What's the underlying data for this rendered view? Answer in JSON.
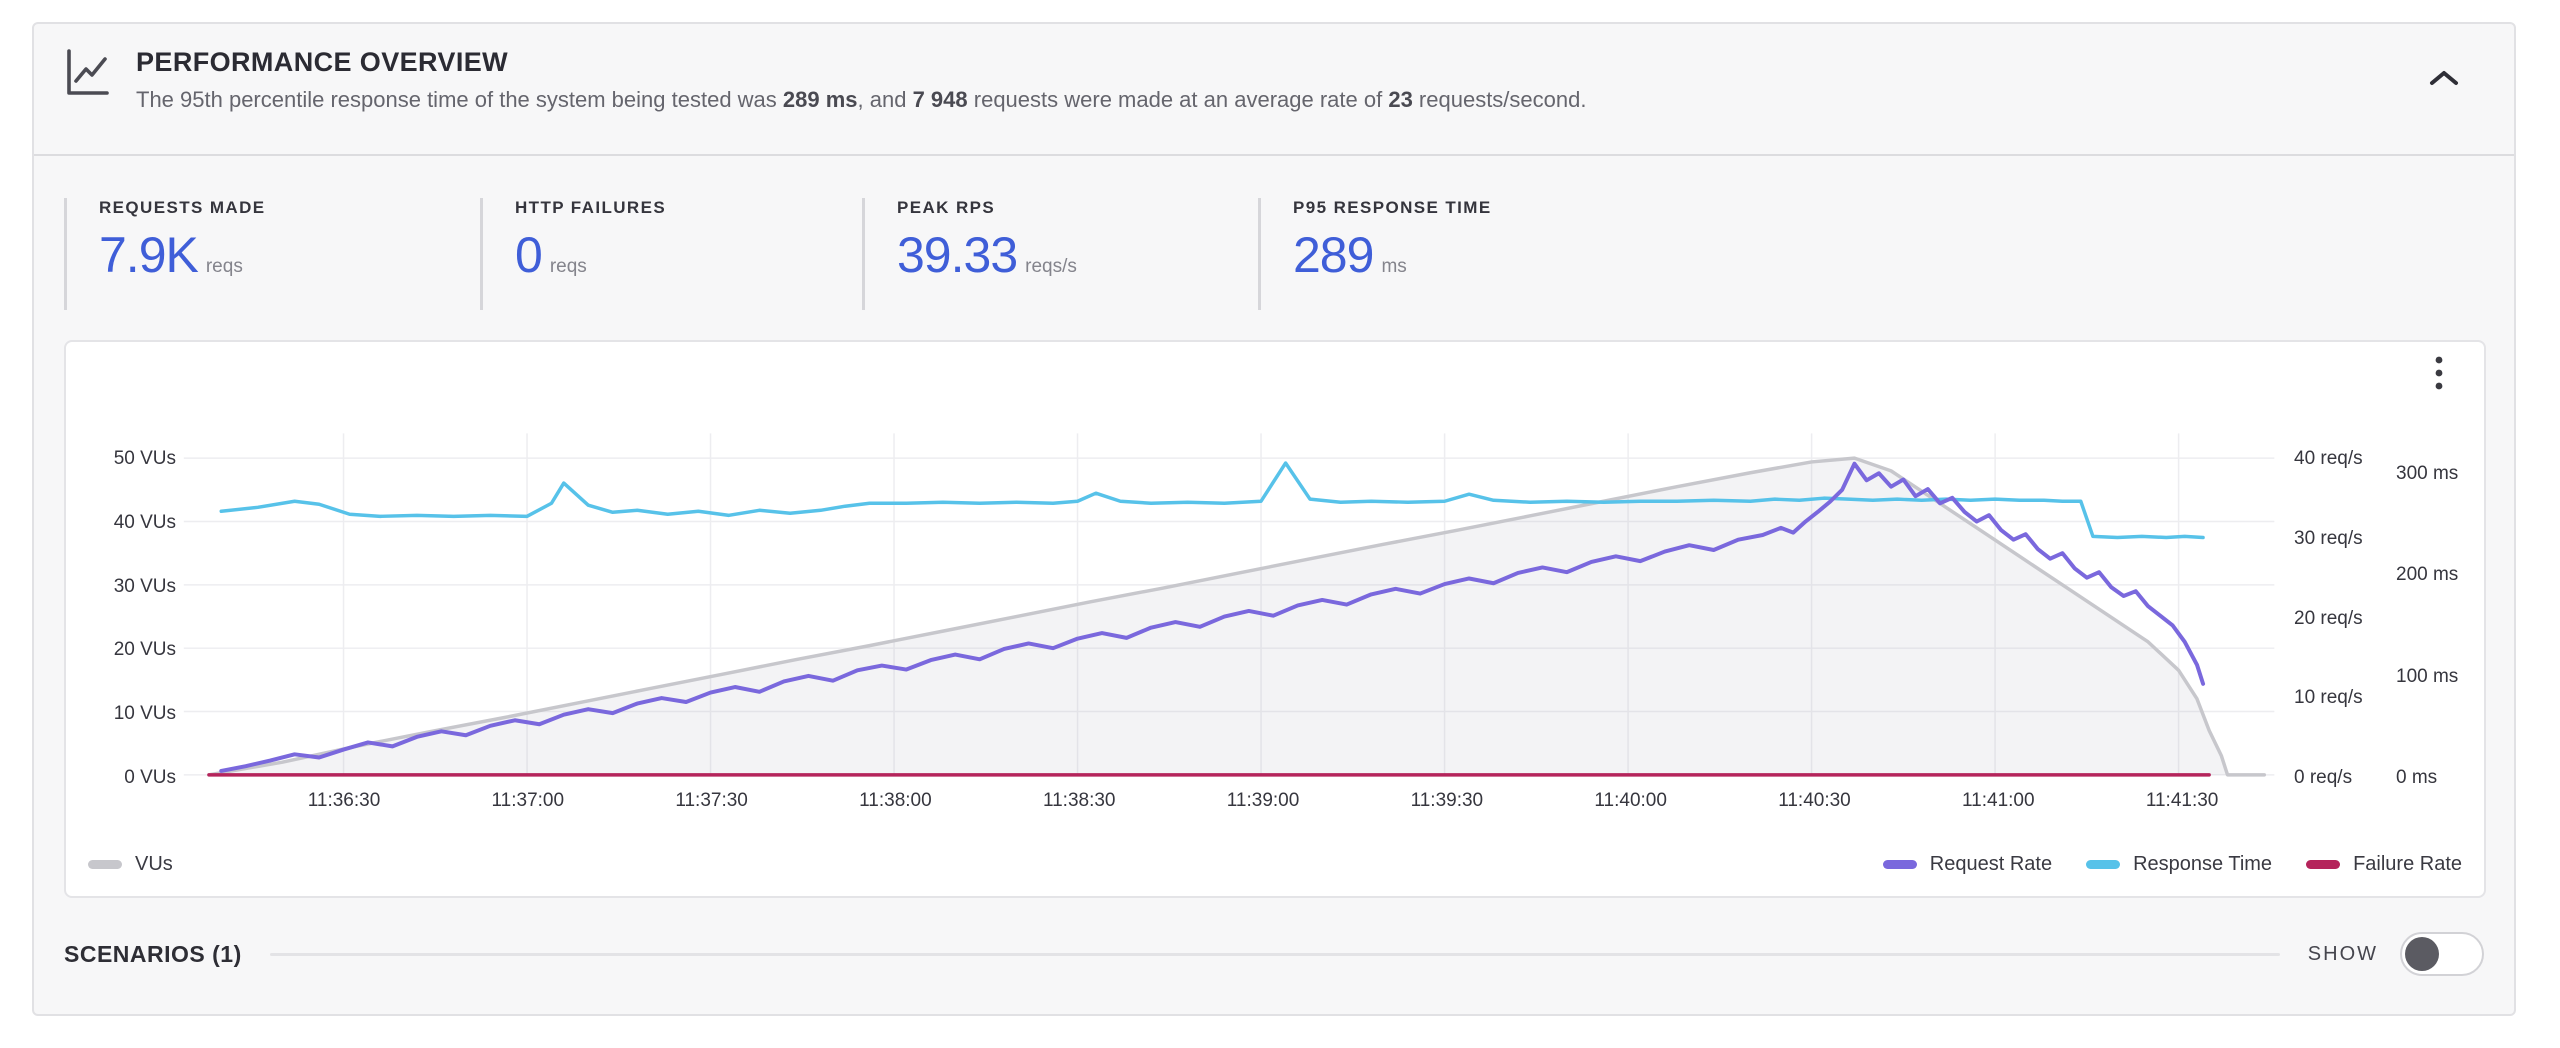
{
  "panel": {
    "title": "PERFORMANCE OVERVIEW",
    "description_parts": [
      {
        "text": "The 95th percentile response time of the system being tested was ",
        "bold": false
      },
      {
        "text": "289 ms",
        "bold": true
      },
      {
        "text": ", and ",
        "bold": false
      },
      {
        "text": "7 948",
        "bold": true
      },
      {
        "text": " requests were made at an average rate of ",
        "bold": false
      },
      {
        "text": "23",
        "bold": true
      },
      {
        "text": " requests/second.",
        "bold": false
      }
    ],
    "icons": {
      "header": "chart-line",
      "collapse": "chevron-up",
      "chart_menu": "kebab-vertical"
    },
    "accent_color": "#3f5ed8"
  },
  "stats": [
    {
      "label": "REQUESTS MADE",
      "value": "7.9K",
      "unit": "reqs"
    },
    {
      "label": "HTTP FAILURES",
      "value": "0",
      "unit": "reqs"
    },
    {
      "label": "PEAK RPS",
      "value": "39.33",
      "unit": "reqs/s"
    },
    {
      "label": "P95 RESPONSE TIME",
      "value": "289",
      "unit": "ms"
    }
  ],
  "legend_left": [
    {
      "label": "VUs",
      "color": "#c7c7cc"
    }
  ],
  "legend_right": [
    {
      "label": "Request Rate",
      "color": "#7a68dd"
    },
    {
      "label": "Response Time",
      "color": "#57c2e9"
    },
    {
      "label": "Failure Rate",
      "color": "#b5245b"
    }
  ],
  "scenarios": {
    "label": "SCENARIOS (1)",
    "show_label": "SHOW",
    "toggle_state": "off"
  },
  "chart_data": {
    "type": "line",
    "grid": true,
    "x_axis": {
      "unit": "time-of-day",
      "ticks": [
        {
          "t": 30,
          "label": "11:36:30"
        },
        {
          "t": 60,
          "label": "11:37:00"
        },
        {
          "t": 90,
          "label": "11:37:30"
        },
        {
          "t": 120,
          "label": "11:38:00"
        },
        {
          "t": 150,
          "label": "11:38:30"
        },
        {
          "t": 180,
          "label": "11:39:00"
        },
        {
          "t": 210,
          "label": "11:39:30"
        },
        {
          "t": 240,
          "label": "11:40:00"
        },
        {
          "t": 270,
          "label": "11:40:30"
        },
        {
          "t": 300,
          "label": "11:41:00"
        },
        {
          "t": 330,
          "label": "11:41:30"
        }
      ]
    },
    "y_axes": {
      "vus": {
        "range": [
          0,
          50
        ],
        "ticks": [
          {
            "v": 0,
            "label": "0 VUs"
          },
          {
            "v": 10,
            "label": "10 VUs"
          },
          {
            "v": 20,
            "label": "20 VUs"
          },
          {
            "v": 30,
            "label": "30 VUs"
          },
          {
            "v": 40,
            "label": "40 VUs"
          },
          {
            "v": 50,
            "label": "50 VUs"
          }
        ]
      },
      "rps": {
        "range": [
          0,
          40
        ],
        "ticks": [
          {
            "v": 0,
            "label": "0 req/s"
          },
          {
            "v": 10,
            "label": "10 req/s"
          },
          {
            "v": 20,
            "label": "20 req/s"
          },
          {
            "v": 30,
            "label": "30 req/s"
          },
          {
            "v": 40,
            "label": "40 req/s"
          }
        ]
      },
      "ms": {
        "range": [
          0,
          300
        ],
        "ticks": [
          {
            "v": 0,
            "label": "0 ms"
          },
          {
            "v": 100,
            "label": "100 ms"
          },
          {
            "v": 200,
            "label": "200 ms"
          },
          {
            "v": 300,
            "label": "300 ms"
          }
        ]
      }
    },
    "series": [
      {
        "name": "VUs",
        "axis": "vus",
        "color": "#c7c7cc",
        "fill": "rgba(176,176,186,0.15)",
        "width": 3.5,
        "points": [
          [
            8,
            0
          ],
          [
            20,
            2
          ],
          [
            32,
            4.5
          ],
          [
            44,
            6.8
          ],
          [
            56,
            9
          ],
          [
            68,
            11.3
          ],
          [
            80,
            13.6
          ],
          [
            92,
            15.9
          ],
          [
            104,
            18.2
          ],
          [
            116,
            20.4
          ],
          [
            128,
            22.7
          ],
          [
            140,
            25
          ],
          [
            152,
            27.3
          ],
          [
            164,
            29.5
          ],
          [
            176,
            31.8
          ],
          [
            188,
            34.1
          ],
          [
            200,
            36.4
          ],
          [
            212,
            38.6
          ],
          [
            224,
            40.9
          ],
          [
            236,
            43.2
          ],
          [
            248,
            45.5
          ],
          [
            260,
            47.7
          ],
          [
            270,
            49.4
          ],
          [
            277,
            50
          ],
          [
            283,
            48
          ],
          [
            290,
            43.5
          ],
          [
            297,
            39
          ],
          [
            304,
            34.5
          ],
          [
            311,
            30
          ],
          [
            318,
            25.5
          ],
          [
            325,
            21
          ],
          [
            330,
            16.5
          ],
          [
            333,
            12
          ],
          [
            335,
            7
          ],
          [
            337,
            3
          ],
          [
            338,
            0
          ],
          [
            344,
            0
          ]
        ]
      },
      {
        "name": "Failure Rate",
        "axis": "rps",
        "color": "#b5245b",
        "width": 3.5,
        "points": [
          [
            8,
            0
          ],
          [
            335,
            0
          ]
        ]
      },
      {
        "name": "Response Time",
        "axis": "ms",
        "color": "#57c2e9",
        "width": 3.5,
        "points": [
          [
            10,
            262
          ],
          [
            16,
            266
          ],
          [
            22,
            272
          ],
          [
            26,
            269
          ],
          [
            31,
            259
          ],
          [
            36,
            257
          ],
          [
            42,
            258
          ],
          [
            48,
            257
          ],
          [
            54,
            258
          ],
          [
            60,
            257
          ],
          [
            64,
            270
          ],
          [
            66,
            290
          ],
          [
            70,
            268
          ],
          [
            74,
            261
          ],
          [
            78,
            263
          ],
          [
            83,
            259
          ],
          [
            88,
            262
          ],
          [
            93,
            258
          ],
          [
            98,
            263
          ],
          [
            103,
            260
          ],
          [
            108,
            263
          ],
          [
            112,
            267
          ],
          [
            116,
            270
          ],
          [
            122,
            270
          ],
          [
            128,
            271
          ],
          [
            134,
            270
          ],
          [
            140,
            271
          ],
          [
            146,
            270
          ],
          [
            150,
            272
          ],
          [
            153,
            280
          ],
          [
            157,
            272
          ],
          [
            162,
            270
          ],
          [
            168,
            271
          ],
          [
            174,
            270
          ],
          [
            180,
            272
          ],
          [
            184,
            310
          ],
          [
            188,
            274
          ],
          [
            193,
            271
          ],
          [
            198,
            272
          ],
          [
            204,
            271
          ],
          [
            210,
            272
          ],
          [
            214,
            279
          ],
          [
            218,
            273
          ],
          [
            224,
            271
          ],
          [
            230,
            272
          ],
          [
            236,
            271
          ],
          [
            242,
            272
          ],
          [
            248,
            272
          ],
          [
            254,
            273
          ],
          [
            260,
            272
          ],
          [
            264,
            274
          ],
          [
            268,
            273
          ],
          [
            272,
            275
          ],
          [
            276,
            274
          ],
          [
            280,
            273
          ],
          [
            284,
            274
          ],
          [
            288,
            273
          ],
          [
            292,
            274
          ],
          [
            296,
            273
          ],
          [
            300,
            274
          ],
          [
            304,
            273
          ],
          [
            308,
            273
          ],
          [
            311,
            272
          ],
          [
            314,
            272
          ],
          [
            316,
            237
          ],
          [
            320,
            236
          ],
          [
            324,
            237
          ],
          [
            328,
            236
          ],
          [
            331,
            237
          ],
          [
            334,
            236
          ]
        ]
      },
      {
        "name": "Request Rate",
        "axis": "rps",
        "color": "#7a68dd",
        "width": 4,
        "points": [
          [
            10,
            0.5
          ],
          [
            14,
            1.1
          ],
          [
            18,
            1.8
          ],
          [
            22,
            2.6
          ],
          [
            26,
            2.2
          ],
          [
            30,
            3.2
          ],
          [
            34,
            4.1
          ],
          [
            38,
            3.6
          ],
          [
            42,
            4.8
          ],
          [
            46,
            5.5
          ],
          [
            50,
            5
          ],
          [
            54,
            6.2
          ],
          [
            58,
            6.9
          ],
          [
            62,
            6.4
          ],
          [
            66,
            7.6
          ],
          [
            70,
            8.3
          ],
          [
            74,
            7.8
          ],
          [
            78,
            9
          ],
          [
            82,
            9.7
          ],
          [
            86,
            9.2
          ],
          [
            90,
            10.4
          ],
          [
            94,
            11.1
          ],
          [
            98,
            10.5
          ],
          [
            102,
            11.8
          ],
          [
            106,
            12.5
          ],
          [
            110,
            11.9
          ],
          [
            114,
            13.2
          ],
          [
            118,
            13.8
          ],
          [
            122,
            13.3
          ],
          [
            126,
            14.5
          ],
          [
            130,
            15.2
          ],
          [
            134,
            14.6
          ],
          [
            138,
            15.9
          ],
          [
            142,
            16.6
          ],
          [
            146,
            16
          ],
          [
            150,
            17.2
          ],
          [
            154,
            17.9
          ],
          [
            158,
            17.3
          ],
          [
            162,
            18.6
          ],
          [
            166,
            19.3
          ],
          [
            170,
            18.7
          ],
          [
            174,
            20
          ],
          [
            178,
            20.7
          ],
          [
            182,
            20.1
          ],
          [
            186,
            21.4
          ],
          [
            190,
            22.1
          ],
          [
            194,
            21.5
          ],
          [
            198,
            22.8
          ],
          [
            202,
            23.5
          ],
          [
            206,
            22.9
          ],
          [
            210,
            24.1
          ],
          [
            214,
            24.8
          ],
          [
            218,
            24.2
          ],
          [
            222,
            25.5
          ],
          [
            226,
            26.2
          ],
          [
            230,
            25.6
          ],
          [
            234,
            26.9
          ],
          [
            238,
            27.6
          ],
          [
            242,
            27
          ],
          [
            246,
            28.2
          ],
          [
            250,
            29
          ],
          [
            254,
            28.4
          ],
          [
            258,
            29.7
          ],
          [
            262,
            30.3
          ],
          [
            265,
            31.2
          ],
          [
            267,
            30.6
          ],
          [
            269,
            32
          ],
          [
            271,
            33.2
          ],
          [
            273,
            34.5
          ],
          [
            275,
            36
          ],
          [
            277,
            39.3
          ],
          [
            279,
            37.2
          ],
          [
            281,
            38.1
          ],
          [
            283,
            36.4
          ],
          [
            285,
            37.3
          ],
          [
            287,
            35.2
          ],
          [
            289,
            36.1
          ],
          [
            291,
            34.3
          ],
          [
            293,
            35
          ],
          [
            295,
            33.2
          ],
          [
            297,
            32
          ],
          [
            299,
            32.8
          ],
          [
            301,
            30.9
          ],
          [
            303,
            29.7
          ],
          [
            305,
            30.4
          ],
          [
            307,
            28.5
          ],
          [
            309,
            27.3
          ],
          [
            311,
            28
          ],
          [
            313,
            26.1
          ],
          [
            315,
            24.9
          ],
          [
            317,
            25.6
          ],
          [
            319,
            23.7
          ],
          [
            321,
            22.6
          ],
          [
            323,
            23.2
          ],
          [
            325,
            21.3
          ],
          [
            327,
            20.1
          ],
          [
            329,
            18.9
          ],
          [
            331,
            16.8
          ],
          [
            333,
            13.9
          ],
          [
            334,
            11.5
          ]
        ]
      }
    ]
  }
}
